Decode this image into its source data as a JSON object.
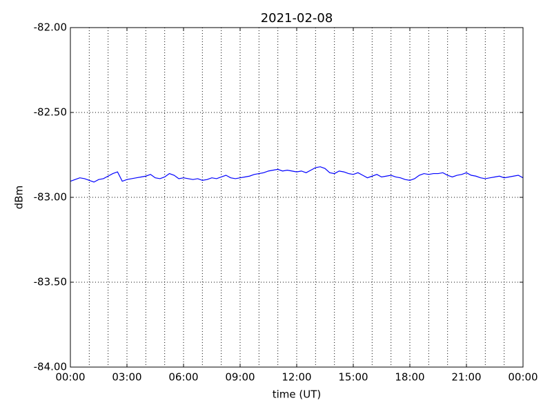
{
  "chart_data": {
    "type": "line",
    "title": "2021-02-08",
    "xlabel": "time (UT)",
    "ylabel": "dBm",
    "x": [
      0,
      0.25,
      0.5,
      0.75,
      1,
      1.25,
      1.5,
      1.75,
      2,
      2.25,
      2.5,
      2.75,
      3,
      3.25,
      3.5,
      3.75,
      4,
      4.25,
      4.5,
      4.75,
      5,
      5.25,
      5.5,
      5.75,
      6,
      6.25,
      6.5,
      6.75,
      7,
      7.25,
      7.5,
      7.75,
      8,
      8.25,
      8.5,
      8.75,
      9,
      9.25,
      9.5,
      9.75,
      10,
      10.25,
      10.5,
      10.75,
      11,
      11.25,
      11.5,
      11.75,
      12,
      12.25,
      12.5,
      12.75,
      13,
      13.25,
      13.5,
      13.75,
      14,
      14.25,
      14.5,
      14.75,
      15,
      15.25,
      15.5,
      15.75,
      16,
      16.25,
      16.5,
      16.75,
      17,
      17.25,
      17.5,
      17.75,
      18,
      18.25,
      18.5,
      18.75,
      19,
      19.25,
      19.5,
      19.75,
      20,
      20.25,
      20.5,
      20.75,
      21,
      21.25,
      21.5,
      21.75,
      22,
      22.25,
      22.5,
      22.75,
      23,
      23.25,
      23.5,
      23.75,
      24
    ],
    "series": [
      {
        "color": "#0000ff",
        "values": [
          -82.905,
          -82.895,
          -82.885,
          -82.89,
          -82.9,
          -82.91,
          -82.895,
          -82.89,
          -82.875,
          -82.86,
          -82.85,
          -82.905,
          -82.895,
          -82.89,
          -82.885,
          -82.88,
          -82.875,
          -82.865,
          -82.885,
          -82.89,
          -82.88,
          -82.86,
          -82.87,
          -82.89,
          -82.885,
          -82.89,
          -82.895,
          -82.89,
          -82.9,
          -82.895,
          -82.885,
          -82.89,
          -82.88,
          -82.87,
          -82.885,
          -82.89,
          -82.885,
          -82.88,
          -82.875,
          -82.865,
          -82.86,
          -82.855,
          -82.845,
          -82.84,
          -82.835,
          -82.845,
          -82.84,
          -82.845,
          -82.85,
          -82.845,
          -82.855,
          -82.84,
          -82.825,
          -82.82,
          -82.83,
          -82.855,
          -82.86,
          -82.845,
          -82.85,
          -82.86,
          -82.865,
          -82.855,
          -82.87,
          -82.885,
          -82.875,
          -82.865,
          -82.88,
          -82.875,
          -82.87,
          -82.88,
          -82.885,
          -82.895,
          -82.9,
          -82.89,
          -82.87,
          -82.86,
          -82.865,
          -82.86,
          -82.86,
          -82.855,
          -82.87,
          -82.88,
          -82.87,
          -82.865,
          -82.855,
          -82.87,
          -82.875,
          -82.885,
          -82.89,
          -82.885,
          -82.88,
          -82.875,
          -82.885,
          -82.88,
          -82.875,
          -82.87,
          -82.885
        ]
      }
    ],
    "xlim": [
      0,
      24
    ],
    "xticks": [
      {
        "value": 0,
        "label": "00:00"
      },
      {
        "value": 3,
        "label": "03:00"
      },
      {
        "value": 6,
        "label": "06:00"
      },
      {
        "value": 9,
        "label": "09:00"
      },
      {
        "value": 12,
        "label": "12:00"
      },
      {
        "value": 15,
        "label": "15:00"
      },
      {
        "value": 18,
        "label": "18:00"
      },
      {
        "value": 21,
        "label": "21:00"
      },
      {
        "value": 24,
        "label": "00:00"
      }
    ],
    "xgridticks": [
      1,
      2,
      3,
      4,
      5,
      6,
      7,
      8,
      9,
      10,
      11,
      12,
      13,
      14,
      15,
      16,
      17,
      18,
      19,
      20,
      21,
      22,
      23
    ],
    "ylim": [
      -84,
      -82
    ],
    "yticks": [
      {
        "value": -84,
        "label": "-84.00"
      },
      {
        "value": -83.5,
        "label": "-83.50"
      },
      {
        "value": -83,
        "label": "-83.00"
      },
      {
        "value": -82.5,
        "label": "-82.50"
      },
      {
        "value": -82,
        "label": "-82.00"
      }
    ],
    "grid": true
  }
}
